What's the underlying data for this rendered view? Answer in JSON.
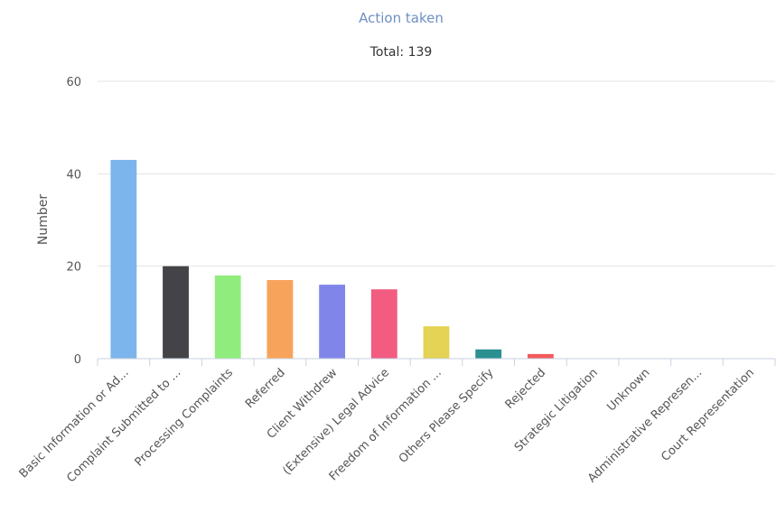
{
  "chart_data": {
    "type": "bar",
    "title": "Action taken",
    "subtitle": "Total: 139",
    "xlabel": "",
    "ylabel": "Number",
    "ylim": [
      0,
      60
    ],
    "yticks": [
      0,
      20,
      40,
      60
    ],
    "grid": true,
    "categories": [
      "Basic Information or Ad...",
      "Complaint Submitted to ...",
      "Processing Complaints",
      "Referred",
      "Client Withdrew",
      "(Extensive) Legal Advice",
      "Freedom of Information ...",
      "Others Please Specify",
      "Rejected",
      "Strategic Litigation",
      "Unknown",
      "Administrative Represen...",
      "Court Representation"
    ],
    "values": [
      43,
      20,
      18,
      17,
      16,
      15,
      7,
      2,
      1,
      0,
      0,
      0,
      0
    ],
    "colors": [
      "#7cb5ec",
      "#434348",
      "#90ed7d",
      "#f7a35c",
      "#8085e9",
      "#f15c80",
      "#e4d354",
      "#2b908f",
      "#f45b5b",
      "#91e8e1",
      "#7cb5ec",
      "#434348",
      "#90ed7d"
    ]
  }
}
